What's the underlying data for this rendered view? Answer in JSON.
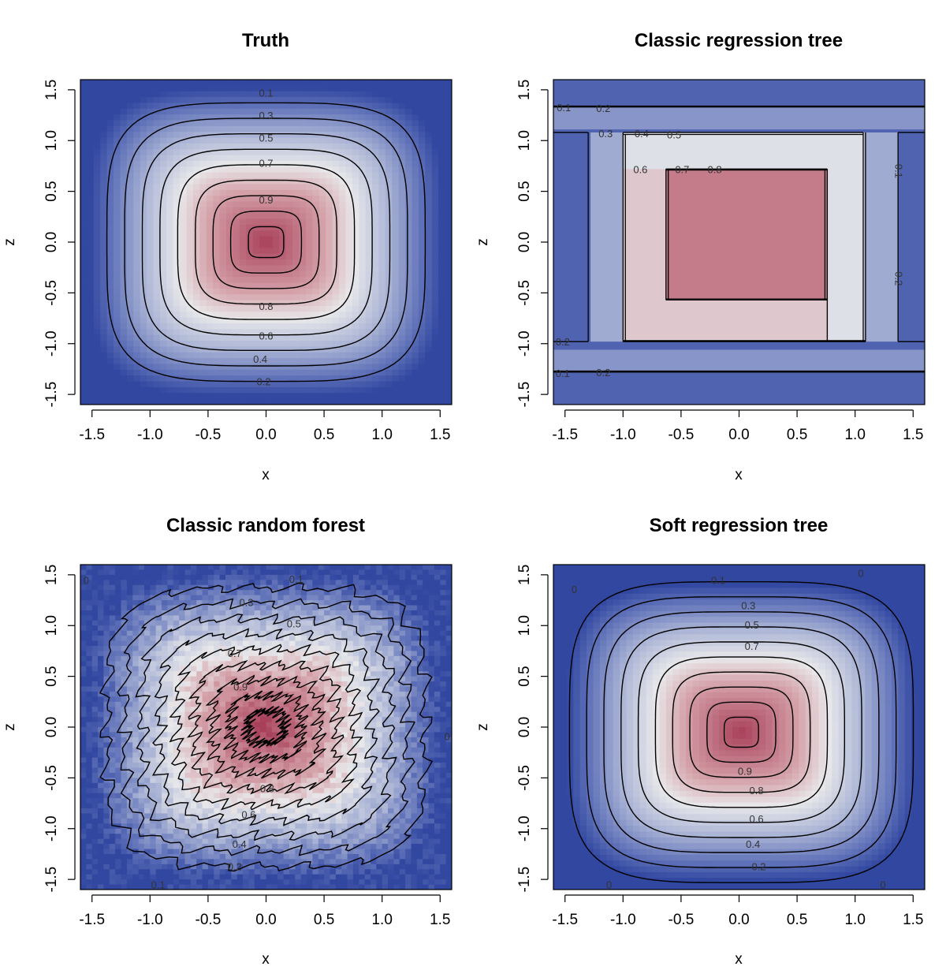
{
  "chart_data": [
    {
      "type": "heatmap",
      "title": "Truth",
      "xlabel": "x",
      "ylabel": "z",
      "xlim": [
        -1.6,
        1.6
      ],
      "ylim": [
        -1.6,
        1.6
      ],
      "ticks": [
        -1.5,
        -1.0,
        -0.5,
        0.0,
        0.5,
        1.0,
        1.5
      ],
      "tick_labels": [
        "-1.5",
        "-1.0",
        "-0.5",
        "0.0",
        "0.5",
        "1.0",
        "1.5"
      ],
      "contour_levels": [
        0.1,
        0.2,
        0.3,
        0.4,
        0.5,
        0.6,
        0.7,
        0.8,
        0.9
      ],
      "contour_labels": [
        {
          "text": "0.1",
          "x": 0.0,
          "y": 1.47
        },
        {
          "text": "0.3",
          "x": 0.0,
          "y": 1.25
        },
        {
          "text": "0.5",
          "x": 0.0,
          "y": 1.03
        },
        {
          "text": "0.7",
          "x": 0.0,
          "y": 0.78
        },
        {
          "text": "0.9",
          "x": 0.0,
          "y": 0.42
        },
        {
          "text": "0.8",
          "x": 0.0,
          "y": -0.63
        },
        {
          "text": "0.6",
          "x": 0.0,
          "y": -0.92
        },
        {
          "text": "0.4",
          "x": -0.05,
          "y": -1.15
        },
        {
          "text": "0.2",
          "x": -0.02,
          "y": -1.37
        }
      ]
    },
    {
      "type": "heatmap",
      "title": "Classic regression tree",
      "xlabel": "x",
      "ylabel": "z",
      "xlim": [
        -1.6,
        1.6
      ],
      "ylim": [
        -1.6,
        1.6
      ],
      "ticks": [
        -1.5,
        -1.0,
        -0.5,
        0.0,
        0.5,
        1.0,
        1.5
      ],
      "tick_labels": [
        "-1.5",
        "-1.0",
        "-0.5",
        "0.0",
        "0.5",
        "1.0",
        "1.5"
      ],
      "contour_labels": [
        {
          "text": "0.1",
          "x": -1.51,
          "y": 1.33
        },
        {
          "text": "0.2",
          "x": -1.17,
          "y": 1.32
        },
        {
          "text": "0.3",
          "x": -1.15,
          "y": 1.07
        },
        {
          "text": "0.4",
          "x": -0.84,
          "y": 1.07
        },
        {
          "text": "0.5",
          "x": -0.56,
          "y": 1.06
        },
        {
          "text": "0.6",
          "x": -0.85,
          "y": 0.72
        },
        {
          "text": "0.7",
          "x": -0.49,
          "y": 0.72
        },
        {
          "text": "0.8",
          "x": -0.21,
          "y": 0.72
        },
        {
          "text": "0.1",
          "x": 1.38,
          "y": 0.7,
          "rotate": 90
        },
        {
          "text": "0.2",
          "x": 1.38,
          "y": -0.36,
          "rotate": 90
        },
        {
          "text": "0.2",
          "x": -1.52,
          "y": -0.98
        },
        {
          "text": "0.1",
          "x": -1.52,
          "y": -1.29
        },
        {
          "text": "0.2",
          "x": -1.17,
          "y": -1.28
        }
      ]
    },
    {
      "type": "heatmap",
      "title": "Classic random forest",
      "xlabel": "x",
      "ylabel": "z",
      "xlim": [
        -1.6,
        1.6
      ],
      "ylim": [
        -1.6,
        1.6
      ],
      "ticks": [
        -1.5,
        -1.0,
        -0.5,
        0.0,
        0.5,
        1.0,
        1.5
      ],
      "tick_labels": [
        "-1.5",
        "-1.0",
        "-0.5",
        "0.0",
        "0.5",
        "1.0",
        "1.5"
      ],
      "contour_levels": [
        0.1,
        0.2,
        0.3,
        0.4,
        0.5,
        0.6,
        0.7,
        0.8,
        0.9
      ],
      "contour_labels": [
        {
          "text": "0.1",
          "x": 0.26,
          "y": 1.46
        },
        {
          "text": "0.3",
          "x": -0.17,
          "y": 1.23
        },
        {
          "text": "0.5",
          "x": 0.24,
          "y": 1.02
        },
        {
          "text": "0.7",
          "x": -0.27,
          "y": 0.73
        },
        {
          "text": "0.9",
          "x": -0.22,
          "y": 0.4
        },
        {
          "text": "0.8",
          "x": 0.01,
          "y": -0.6
        },
        {
          "text": "0.6",
          "x": -0.15,
          "y": -0.86
        },
        {
          "text": "0.4",
          "x": -0.23,
          "y": -1.15
        },
        {
          "text": "0.2",
          "x": -0.27,
          "y": -1.37
        },
        {
          "text": "0.1",
          "x": -0.93,
          "y": -1.55
        },
        {
          "text": "0",
          "x": -1.55,
          "y": 1.45
        },
        {
          "text": "0",
          "x": 1.56,
          "y": -0.09
        }
      ]
    },
    {
      "type": "heatmap",
      "title": "Soft regression tree",
      "xlabel": "x",
      "ylabel": "z",
      "xlim": [
        -1.6,
        1.6
      ],
      "ylim": [
        -1.6,
        1.6
      ],
      "ticks": [
        -1.5,
        -1.0,
        -0.5,
        0.0,
        0.5,
        1.0,
        1.5
      ],
      "tick_labels": [
        "-1.5",
        "-1.0",
        "-0.5",
        "0.0",
        "0.5",
        "1.0",
        "1.5"
      ],
      "contour_levels": [
        0,
        0.1,
        0.2,
        0.3,
        0.4,
        0.5,
        0.6,
        0.7,
        0.8,
        0.9
      ],
      "contour_labels": [
        {
          "text": "0.1",
          "x": -0.18,
          "y": 1.45
        },
        {
          "text": "0.3",
          "x": 0.08,
          "y": 1.2
        },
        {
          "text": "0.5",
          "x": 0.11,
          "y": 1.01
        },
        {
          "text": "0.7",
          "x": 0.11,
          "y": 0.8
        },
        {
          "text": "0.9",
          "x": 0.05,
          "y": -0.43
        },
        {
          "text": "0.8",
          "x": 0.15,
          "y": -0.62
        },
        {
          "text": "0.6",
          "x": 0.15,
          "y": -0.9
        },
        {
          "text": "0.4",
          "x": 0.12,
          "y": -1.15
        },
        {
          "text": "0.2",
          "x": 0.17,
          "y": -1.37
        },
        {
          "text": "0",
          "x": -1.42,
          "y": 1.36
        },
        {
          "text": "0",
          "x": 1.05,
          "y": 1.52
        },
        {
          "text": "0",
          "x": -1.12,
          "y": -1.55
        },
        {
          "text": "0",
          "x": 1.24,
          "y": -1.55
        }
      ]
    }
  ]
}
